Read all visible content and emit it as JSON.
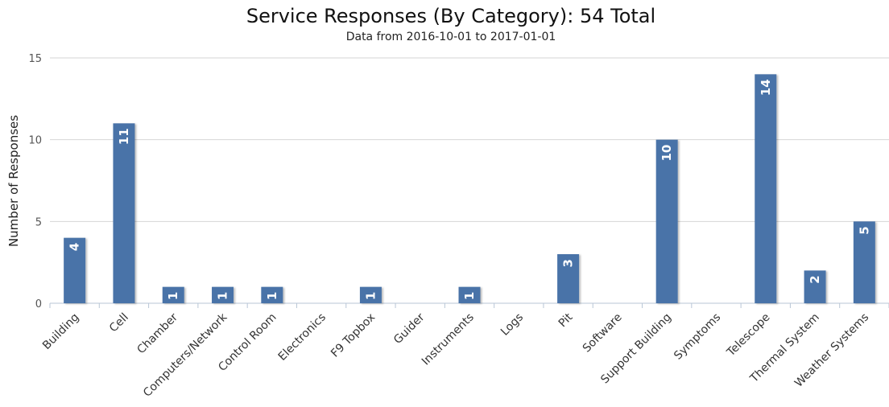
{
  "chart_data": {
    "type": "bar",
    "title": "Service Responses (By Category): 54 Total",
    "subtitle": "Data from 2016-10-01 to 2017-01-01",
    "ylabel": "Number of Responses",
    "xlabel": "",
    "ylim": [
      0,
      15
    ],
    "yticks": [
      0,
      5,
      10,
      15
    ],
    "grid": true,
    "legend": "none",
    "bar_color": "#4a73a8",
    "categories": [
      "Building",
      "Cell",
      "Chamber",
      "Computers/Network",
      "Control Room",
      "Electronics",
      "F9 Topbox",
      "Guider",
      "Instruments",
      "Logs",
      "Pit",
      "Software",
      "Support Building",
      "Symptoms",
      "Telescope",
      "Thermal System",
      "Weather Systems"
    ],
    "values": [
      4,
      11,
      1,
      1,
      1,
      0,
      1,
      0,
      1,
      0,
      3,
      0,
      10,
      0,
      14,
      2,
      5
    ]
  }
}
